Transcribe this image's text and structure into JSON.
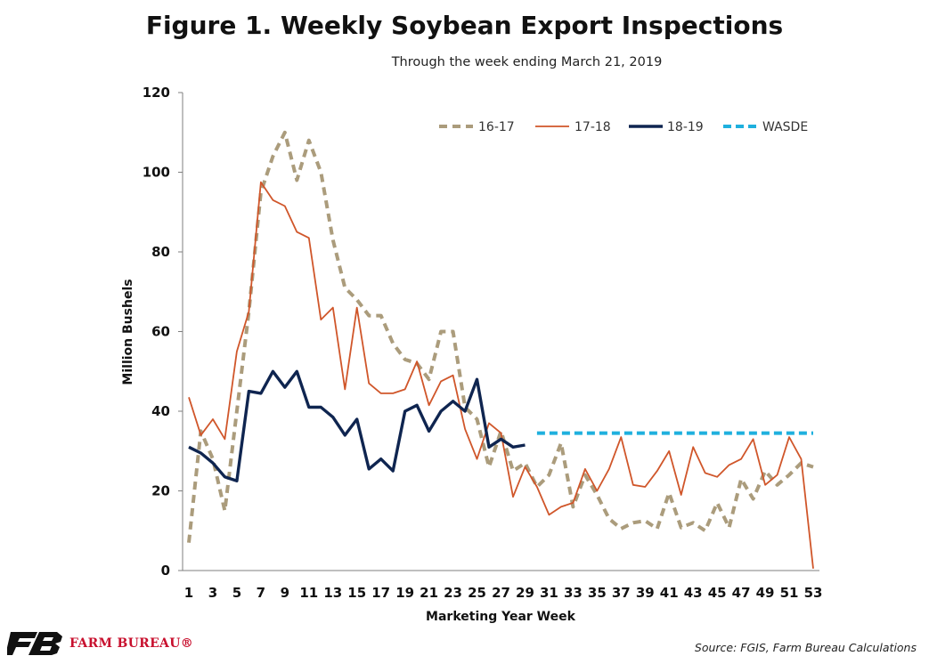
{
  "colors": {
    "s1617": "#ab9c7c",
    "s1718": "#d0562a",
    "s1819": "#0f2550",
    "wasde": "#1fb0de",
    "brand": "#c8102e"
  },
  "title": "Figure 1. Weekly Soybean Export Inspections",
  "subtitle": "Through the week ending March 21, 2019",
  "source": "Source: FGIS, Farm Bureau Calculations",
  "logo": {
    "icon": "farm-bureau-fb-icon",
    "text": "FARM BUREAU®"
  },
  "chart_data": {
    "type": "line",
    "title": "Figure 1. Weekly Soybean Export Inspections",
    "subtitle": "Through the week ending March 21, 2019",
    "xlabel": "Marketing Year Week",
    "ylabel": "Million Bushels",
    "xlim": [
      1,
      53
    ],
    "ylim": [
      0,
      120
    ],
    "yticks": [
      0,
      20,
      40,
      60,
      80,
      100,
      120
    ],
    "xticks": [
      1,
      3,
      5,
      7,
      9,
      11,
      13,
      15,
      17,
      19,
      21,
      23,
      25,
      27,
      29,
      31,
      33,
      35,
      37,
      39,
      41,
      43,
      45,
      47,
      49,
      51,
      53
    ],
    "grid": false,
    "legend_position": "top-right",
    "series": [
      {
        "name": "16-17",
        "style": "dashed",
        "color": "#ab9c7c",
        "x": [
          1,
          2,
          3,
          4,
          5,
          6,
          7,
          8,
          9,
          10,
          11,
          12,
          13,
          14,
          15,
          16,
          17,
          18,
          19,
          20,
          21,
          22,
          23,
          24,
          25,
          26,
          27,
          28,
          29,
          30,
          31,
          32,
          33,
          34,
          35,
          36,
          37,
          38,
          39,
          40,
          41,
          42,
          43,
          44,
          45,
          46,
          47,
          48,
          49,
          50,
          51,
          52,
          53
        ],
        "values": [
          7,
          35,
          28,
          15,
          40,
          65,
          95,
          104,
          110,
          98,
          108,
          100,
          83,
          71,
          68,
          64,
          64,
          57,
          53,
          52,
          48,
          60,
          60,
          41,
          38,
          26,
          35,
          25,
          27,
          21,
          24,
          32,
          16,
          24,
          19,
          13,
          10.5,
          12,
          12.5,
          10.5,
          19.5,
          10.8,
          12,
          10,
          17,
          10.8,
          23,
          18,
          25,
          21.5,
          24,
          27,
          26
        ]
      },
      {
        "name": "17-18",
        "style": "solid",
        "color": "#d0562a",
        "x": [
          1,
          2,
          3,
          4,
          5,
          6,
          7,
          8,
          9,
          10,
          11,
          12,
          13,
          14,
          15,
          16,
          17,
          18,
          19,
          20,
          21,
          22,
          23,
          24,
          25,
          26,
          27,
          28,
          29,
          30,
          31,
          32,
          33,
          34,
          35,
          36,
          37,
          38,
          39,
          40,
          41,
          42,
          43,
          44,
          45,
          46,
          47,
          48,
          49,
          50,
          51,
          52,
          53
        ],
        "values": [
          43.5,
          34,
          38,
          33,
          55,
          65,
          97.5,
          93,
          91.5,
          85,
          83.5,
          63,
          66,
          45.5,
          66,
          47,
          44.5,
          44.5,
          45.5,
          52.5,
          41.5,
          47.5,
          49,
          35.5,
          28,
          37,
          34.5,
          18.5,
          26,
          21,
          14,
          16,
          17,
          25.5,
          20,
          25.5,
          33.5,
          21.5,
          21,
          25,
          30,
          19,
          31,
          24.5,
          23.5,
          26.5,
          28,
          33,
          21.5,
          24,
          33.5,
          28,
          0.5
        ]
      },
      {
        "name": "18-19",
        "style": "solid",
        "color": "#0f2550",
        "x": [
          1,
          2,
          3,
          4,
          5,
          6,
          7,
          8,
          9,
          10,
          11,
          12,
          13,
          14,
          15,
          16,
          17,
          18,
          19,
          20,
          21,
          22,
          23,
          24,
          25,
          26,
          27,
          28,
          29
        ],
        "values": [
          31,
          29.5,
          27,
          23.5,
          22.5,
          45,
          44.5,
          50,
          46,
          50,
          41,
          41,
          38.5,
          34,
          38,
          25.5,
          28,
          25,
          40,
          41.5,
          35,
          40,
          42.5,
          40,
          48,
          31,
          33,
          31,
          31.5
        ]
      },
      {
        "name": "WASDE",
        "style": "dashed",
        "color": "#1fb0de",
        "x": [
          30,
          53
        ],
        "values": [
          34.5,
          34.5
        ]
      }
    ]
  }
}
